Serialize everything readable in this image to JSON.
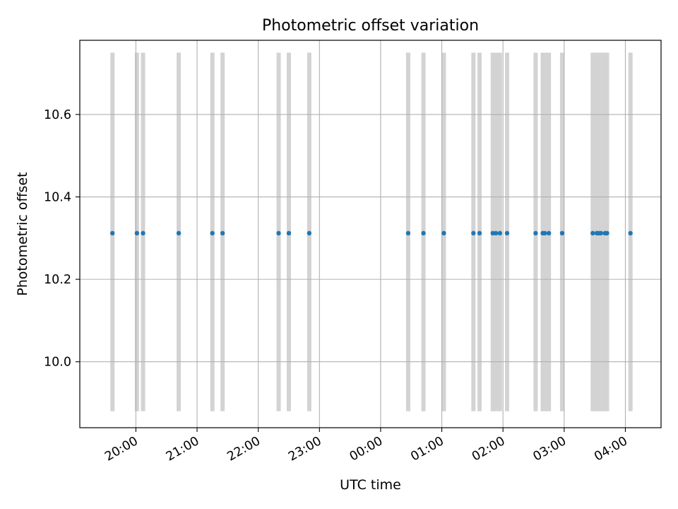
{
  "chart_data": {
    "type": "scatter",
    "title": "Photometric offset variation",
    "xlabel": "UTC time",
    "ylabel": "Photometric offset",
    "grid": true,
    "x_axis": {
      "kind": "time",
      "range": [
        "19:05",
        "04:35"
      ],
      "ticks": [
        "20:00",
        "21:00",
        "22:00",
        "23:00",
        "00:00",
        "01:00",
        "02:00",
        "03:00",
        "04:00"
      ]
    },
    "y_axis": {
      "range": [
        9.84,
        10.78
      ],
      "ticks": [
        10.0,
        10.2,
        10.4,
        10.6
      ],
      "tick_labels": [
        "10.0",
        "10.2",
        "10.4",
        "10.6"
      ]
    },
    "bands": {
      "color": "#d3d3d3",
      "y_range": [
        9.88,
        10.75
      ]
    },
    "point_color": "#1f77b4",
    "points": [
      {
        "t": "19:37",
        "y": 10.312
      },
      {
        "t": "20:01",
        "y": 10.312
      },
      {
        "t": "20:07",
        "y": 10.312
      },
      {
        "t": "20:42",
        "y": 10.312
      },
      {
        "t": "21:15",
        "y": 10.312
      },
      {
        "t": "21:25",
        "y": 10.312
      },
      {
        "t": "22:20",
        "y": 10.312
      },
      {
        "t": "22:30",
        "y": 10.312
      },
      {
        "t": "22:50",
        "y": 10.312
      },
      {
        "t": "00:27",
        "y": 10.312
      },
      {
        "t": "00:42",
        "y": 10.312
      },
      {
        "t": "01:02",
        "y": 10.312
      },
      {
        "t": "01:31",
        "y": 10.312
      },
      {
        "t": "01:37",
        "y": 10.312
      },
      {
        "t": "01:50",
        "y": 10.312
      },
      {
        "t": "01:53",
        "y": 10.312
      },
      {
        "t": "01:57",
        "y": 10.312
      },
      {
        "t": "02:04",
        "y": 10.312
      },
      {
        "t": "02:32",
        "y": 10.312
      },
      {
        "t": "02:39",
        "y": 10.312
      },
      {
        "t": "02:41",
        "y": 10.312
      },
      {
        "t": "02:45",
        "y": 10.312
      },
      {
        "t": "02:58",
        "y": 10.312
      },
      {
        "t": "03:28",
        "y": 10.312
      },
      {
        "t": "03:32",
        "y": 10.312
      },
      {
        "t": "03:34",
        "y": 10.312
      },
      {
        "t": "03:36",
        "y": 10.312
      },
      {
        "t": "03:40",
        "y": 10.312
      },
      {
        "t": "03:42",
        "y": 10.312
      },
      {
        "t": "04:05",
        "y": 10.312
      }
    ]
  }
}
